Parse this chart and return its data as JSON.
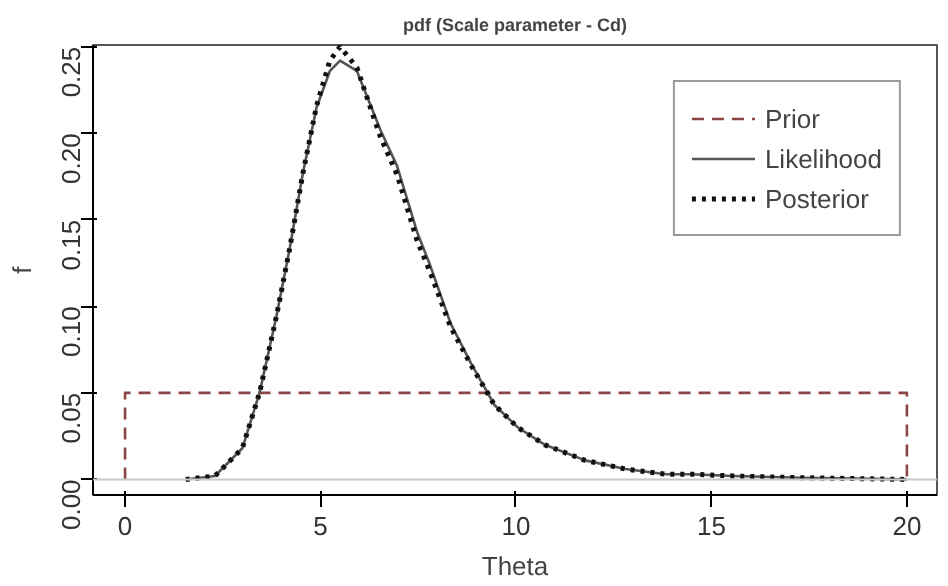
{
  "chart_data": {
    "type": "line",
    "title": "pdf (Scale parameter - Cd)",
    "xlabel": "Theta",
    "ylabel": "f",
    "xlim": [
      -0.82,
      20.77
    ],
    "ylim": [
      -0.009,
      0.251
    ],
    "xticks": [
      0,
      5,
      10,
      15,
      20
    ],
    "yticks": [
      {
        "value": 0,
        "label": "0.00"
      },
      {
        "value": 0.05,
        "label": "0.05"
      },
      {
        "value": 0.1,
        "label": "0.10"
      },
      {
        "value": 0.15,
        "label": "0.15"
      },
      {
        "value": 0.2,
        "label": "0.20"
      },
      {
        "value": 0.25,
        "label": "0.25"
      }
    ],
    "legend": "top right",
    "grid": false,
    "marker": "none",
    "ref_lines": [
      {
        "axis": "y",
        "value": 0,
        "color": "#c8c8c8",
        "line_style": "solid"
      }
    ],
    "series": [
      {
        "name": "Prior",
        "color": "#8b4545",
        "line_style": "dashed",
        "x": [
          0,
          0,
          20,
          20
        ],
        "values": [
          0,
          0.05,
          0.05,
          0
        ]
      },
      {
        "name": "Likelihood",
        "color": "#555555",
        "line_style": "solid",
        "x": [
          1.55,
          2.3,
          3.0,
          3.44,
          3.87,
          4.2,
          4.55,
          4.9,
          5.24,
          5.5,
          5.93,
          6.53,
          6.96,
          7.47,
          7.8,
          8.33,
          8.85,
          9.45,
          10.05,
          10.74,
          11.77,
          12.8,
          13.83,
          14.5,
          15.55,
          17.27,
          20
        ],
        "values": [
          0,
          0.002,
          0.018,
          0.05,
          0.094,
          0.132,
          0.177,
          0.215,
          0.236,
          0.242,
          0.236,
          0.202,
          0.181,
          0.143,
          0.124,
          0.09,
          0.067,
          0.043,
          0.03,
          0.02,
          0.011,
          0.006,
          0.003,
          0.003,
          0.002,
          0.001,
          0
        ]
      },
      {
        "name": "Posterior",
        "color": "#111111",
        "line_style": "dotted",
        "x": [
          1.55,
          2.3,
          3.0,
          3.44,
          3.87,
          4.2,
          4.55,
          4.9,
          5.24,
          5.5,
          5.93,
          6.53,
          6.96,
          7.47,
          7.8,
          8.33,
          8.85,
          9.45,
          10.05,
          10.74,
          11.77,
          12.8,
          13.83,
          14.5,
          15.55,
          17.27,
          20
        ],
        "values": [
          0,
          0.002,
          0.018,
          0.05,
          0.094,
          0.132,
          0.177,
          0.216,
          0.242,
          0.25,
          0.238,
          0.198,
          0.176,
          0.138,
          0.12,
          0.088,
          0.066,
          0.043,
          0.03,
          0.02,
          0.011,
          0.006,
          0.003,
          0.003,
          0.002,
          0.001,
          0
        ]
      }
    ]
  }
}
